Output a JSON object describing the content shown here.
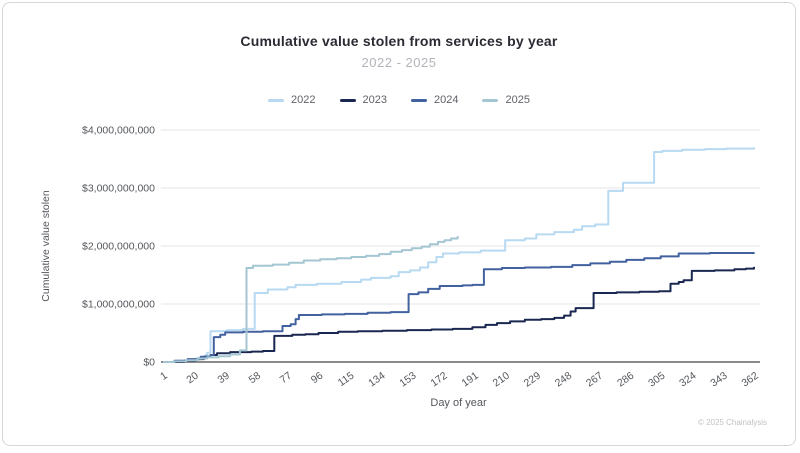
{
  "header": {
    "title": "Cumulative value stolen from services by year",
    "subtitle": "2022 - 2025"
  },
  "footer": {
    "copyright": "© 2025 Chainalysis"
  },
  "chart_data": {
    "type": "line",
    "line_shape": "step-after",
    "title": "Cumulative value stolen from services by year",
    "subtitle": "2022 - 2025",
    "xlabel": "Day of year",
    "ylabel": "Cumulative value stolen",
    "legend_position": "top",
    "grid": "horizontal",
    "xlim": [
      1,
      362
    ],
    "ylim_billions": [
      0,
      4
    ],
    "x_ticks": [
      1,
      20,
      39,
      58,
      77,
      96,
      115,
      134,
      153,
      172,
      191,
      210,
      229,
      248,
      267,
      286,
      305,
      324,
      343,
      362
    ],
    "y_ticks": [
      {
        "billions": 0,
        "label": "$0"
      },
      {
        "billions": 1,
        "label": "$1,000,000,000"
      },
      {
        "billions": 2,
        "label": "$2,000,000,000"
      },
      {
        "billions": 3,
        "label": "$3,000,000,000"
      },
      {
        "billions": 4,
        "label": "$4,000,000,000"
      }
    ],
    "series": [
      {
        "name": "2022",
        "color": "#b7d9f1",
        "points_day_billions": [
          [
            1,
            0
          ],
          [
            10,
            0.02
          ],
          [
            16,
            0.04
          ],
          [
            22,
            0.07
          ],
          [
            27,
            0.12
          ],
          [
            28,
            0.16
          ],
          [
            30,
            0.53
          ],
          [
            40,
            0.55
          ],
          [
            50,
            0.57
          ],
          [
            57,
            1.19
          ],
          [
            65,
            1.25
          ],
          [
            77,
            1.29
          ],
          [
            82,
            1.33
          ],
          [
            95,
            1.35
          ],
          [
            110,
            1.38
          ],
          [
            122,
            1.42
          ],
          [
            128,
            1.45
          ],
          [
            140,
            1.48
          ],
          [
            145,
            1.55
          ],
          [
            152,
            1.58
          ],
          [
            158,
            1.63
          ],
          [
            163,
            1.72
          ],
          [
            168,
            1.81
          ],
          [
            172,
            1.87
          ],
          [
            182,
            1.89
          ],
          [
            195,
            1.92
          ],
          [
            210,
            2.1
          ],
          [
            222,
            2.13
          ],
          [
            229,
            2.2
          ],
          [
            240,
            2.24
          ],
          [
            252,
            2.28
          ],
          [
            257,
            2.34
          ],
          [
            265,
            2.37
          ],
          [
            273,
            2.95
          ],
          [
            282,
            3.09
          ],
          [
            301,
            3.62
          ],
          [
            306,
            3.64
          ],
          [
            318,
            3.66
          ],
          [
            332,
            3.67
          ],
          [
            345,
            3.68
          ],
          [
            362,
            3.7
          ]
        ]
      },
      {
        "name": "2023",
        "color": "#1a2750",
        "points_day_billions": [
          [
            1,
            0
          ],
          [
            14,
            0.02
          ],
          [
            21,
            0.05
          ],
          [
            26,
            0.09
          ],
          [
            30,
            0.12
          ],
          [
            34,
            0.15
          ],
          [
            42,
            0.17
          ],
          [
            55,
            0.18
          ],
          [
            62,
            0.19
          ],
          [
            69,
            0.45
          ],
          [
            80,
            0.47
          ],
          [
            88,
            0.48
          ],
          [
            96,
            0.5
          ],
          [
            108,
            0.52
          ],
          [
            120,
            0.53
          ],
          [
            135,
            0.54
          ],
          [
            150,
            0.55
          ],
          [
            165,
            0.56
          ],
          [
            178,
            0.57
          ],
          [
            190,
            0.6
          ],
          [
            198,
            0.64
          ],
          [
            205,
            0.67
          ],
          [
            213,
            0.7
          ],
          [
            222,
            0.73
          ],
          [
            232,
            0.74
          ],
          [
            240,
            0.76
          ],
          [
            246,
            0.8
          ],
          [
            250,
            0.87
          ],
          [
            253,
            0.93
          ],
          [
            264,
            1.19
          ],
          [
            278,
            1.2
          ],
          [
            292,
            1.21
          ],
          [
            304,
            1.22
          ],
          [
            311,
            1.35
          ],
          [
            316,
            1.38
          ],
          [
            319,
            1.41
          ],
          [
            324,
            1.57
          ],
          [
            338,
            1.58
          ],
          [
            350,
            1.6
          ],
          [
            357,
            1.61
          ],
          [
            362,
            1.64
          ]
        ]
      },
      {
        "name": "2024",
        "color": "#42619f",
        "points_day_billions": [
          [
            1,
            0
          ],
          [
            8,
            0.02
          ],
          [
            16,
            0.05
          ],
          [
            24,
            0.09
          ],
          [
            30,
            0.12
          ],
          [
            32,
            0.43
          ],
          [
            36,
            0.47
          ],
          [
            39,
            0.51
          ],
          [
            50,
            0.52
          ],
          [
            62,
            0.53
          ],
          [
            74,
            0.62
          ],
          [
            79,
            0.65
          ],
          [
            82,
            0.74
          ],
          [
            84,
            0.81
          ],
          [
            98,
            0.82
          ],
          [
            112,
            0.83
          ],
          [
            126,
            0.85
          ],
          [
            140,
            0.86
          ],
          [
            151,
            1.17
          ],
          [
            157,
            1.2
          ],
          [
            163,
            1.26
          ],
          [
            170,
            1.31
          ],
          [
            184,
            1.32
          ],
          [
            190,
            1.33
          ],
          [
            197,
            1.6
          ],
          [
            208,
            1.62
          ],
          [
            222,
            1.63
          ],
          [
            238,
            1.64
          ],
          [
            251,
            1.67
          ],
          [
            262,
            1.7
          ],
          [
            274,
            1.73
          ],
          [
            284,
            1.76
          ],
          [
            295,
            1.79
          ],
          [
            305,
            1.82
          ],
          [
            316,
            1.87
          ],
          [
            335,
            1.88
          ],
          [
            362,
            1.89
          ]
        ]
      },
      {
        "name": "2025",
        "color": "#a4c6d2",
        "points_day_billions": [
          [
            1,
            0
          ],
          [
            8,
            0.01
          ],
          [
            15,
            0.03
          ],
          [
            22,
            0.06
          ],
          [
            28,
            0.08
          ],
          [
            35,
            0.1
          ],
          [
            42,
            0.13
          ],
          [
            48,
            0.2
          ],
          [
            52,
            1.62
          ],
          [
            56,
            1.66
          ],
          [
            68,
            1.68
          ],
          [
            78,
            1.71
          ],
          [
            87,
            1.75
          ],
          [
            97,
            1.77
          ],
          [
            107,
            1.79
          ],
          [
            116,
            1.81
          ],
          [
            125,
            1.83
          ],
          [
            133,
            1.86
          ],
          [
            140,
            1.9
          ],
          [
            147,
            1.93
          ],
          [
            153,
            1.96
          ],
          [
            159,
            1.99
          ],
          [
            164,
            2.03
          ],
          [
            169,
            2.07
          ],
          [
            173,
            2.1
          ],
          [
            177,
            2.13
          ],
          [
            181,
            2.17
          ]
        ]
      }
    ],
    "style": {
      "grid_color": "#e4e4e4",
      "axis_line_color": "#8a8a8a",
      "tick_label_color": "#54575d",
      "axis_title_color": "#54575d"
    }
  }
}
